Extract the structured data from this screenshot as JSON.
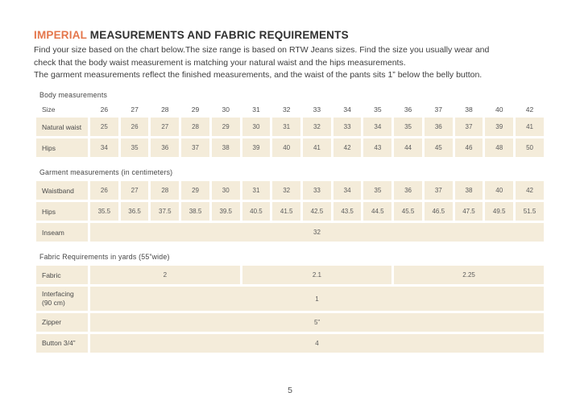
{
  "header": {
    "title_highlight": "IMPERIAL",
    "title_rest": " MEASUREMENTS AND FABRIC REQUIREMENTS",
    "intro_lines": [
      "Find your size based on the chart below.The size range is based on RTW Jeans sizes. Find the size you usually wear and",
      "check that the body waist measurement is matching your natural waist and the hips measurements.",
      "The garment measurements reflect the finished measurements, and the waist of the pants sits 1” below the belly button."
    ]
  },
  "colors": {
    "accent": "#E4764B",
    "cell_bg": "#F4ECDA"
  },
  "sections": {
    "body": {
      "label": "Body measurements",
      "rows": [
        {
          "label": "Size",
          "header": true,
          "values": [
            "26",
            "27",
            "28",
            "29",
            "30",
            "31",
            "32",
            "33",
            "34",
            "35",
            "36",
            "37",
            "38",
            "40",
            "42"
          ]
        },
        {
          "label": "Natural waist",
          "values": [
            "25",
            "26",
            "27",
            "28",
            "29",
            "30",
            "31",
            "32",
            "33",
            "34",
            "35",
            "36",
            "37",
            "39",
            "41"
          ]
        },
        {
          "label": "Hips",
          "values": [
            "34",
            "35",
            "36",
            "37",
            "38",
            "39",
            "40",
            "41",
            "42",
            "43",
            "44",
            "45",
            "46",
            "48",
            "50"
          ]
        }
      ]
    },
    "garment": {
      "label": "Garment measurements (in centimeters)",
      "rows": [
        {
          "label": "Waistband",
          "values": [
            "26",
            "27",
            "28",
            "29",
            "30",
            "31",
            "32",
            "33",
            "34",
            "35",
            "36",
            "37",
            "38",
            "40",
            "42"
          ]
        },
        {
          "label": "Hips",
          "values": [
            "35.5",
            "36.5",
            "37.5",
            "38.5",
            "39.5",
            "40.5",
            "41.5",
            "42.5",
            "43.5",
            "44.5",
            "45.5",
            "46.5",
            "47.5",
            "49.5",
            "51.5"
          ]
        },
        {
          "label": "Inseam",
          "cells": [
            {
              "text": "32",
              "span": 15
            }
          ]
        }
      ]
    },
    "fabric": {
      "label": "Fabric Requirements in yards (55”wide)",
      "rows": [
        {
          "label": "Fabric",
          "cells": [
            {
              "text": "2",
              "span": 5
            },
            {
              "text": "2.1",
              "span": 5
            },
            {
              "text": "2.25",
              "span": 5
            }
          ]
        },
        {
          "label": "Interfacing (90 cm)",
          "cells": [
            {
              "text": "1",
              "span": 15
            }
          ]
        },
        {
          "label": "Zipper",
          "cells": [
            {
              "text": "5”",
              "span": 15
            }
          ]
        },
        {
          "label": "Button 3/4”",
          "cells": [
            {
              "text": "4",
              "span": 15
            }
          ]
        }
      ]
    }
  },
  "footer": {
    "page_number": "5"
  }
}
